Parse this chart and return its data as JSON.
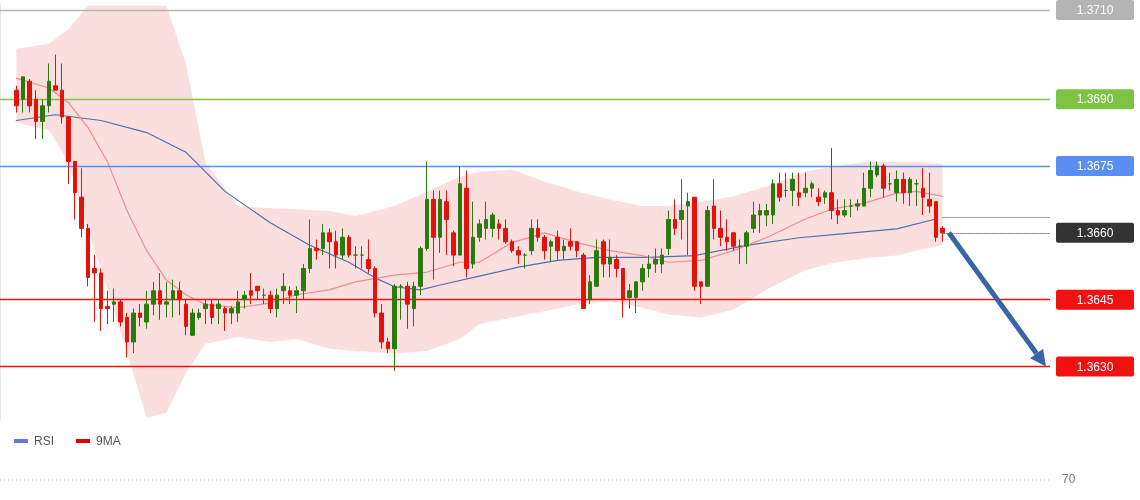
{
  "chart_data": [
    {
      "type": "candlestick",
      "ylim": [
        1.3618,
        1.37112
      ],
      "tick_labels": "y",
      "grid": false,
      "categories": [
        null,
        null,
        null,
        null,
        null,
        null,
        null,
        null,
        null,
        null,
        null,
        null,
        null,
        null,
        null,
        null,
        null,
        null,
        null,
        null,
        null,
        null,
        null,
        null,
        null,
        null,
        null,
        null,
        null,
        null,
        null,
        null,
        null,
        null,
        null,
        null,
        null,
        null,
        null,
        null,
        null,
        null,
        null,
        null,
        null,
        null,
        null,
        null,
        null,
        null,
        null,
        null,
        null,
        null,
        null,
        null,
        null,
        null,
        null,
        null,
        null,
        null,
        null,
        null,
        null,
        null,
        null,
        null,
        null,
        null,
        null,
        null,
        null,
        null,
        null,
        null,
        null,
        null,
        null,
        null,
        null,
        null,
        null,
        null,
        null,
        null,
        null,
        null,
        null,
        null,
        null,
        null,
        null,
        null,
        null,
        null,
        null,
        null,
        null,
        null,
        null,
        null,
        null,
        null,
        null,
        null,
        null,
        null,
        null,
        null,
        null,
        null,
        null,
        null,
        null,
        null,
        null,
        null,
        null,
        null,
        null,
        null,
        null,
        null,
        null,
        null,
        null,
        null,
        null,
        null,
        null,
        null,
        null,
        null,
        null,
        null,
        null,
        null,
        null,
        null,
        null,
        null,
        null,
        null,
        null,
        null,
        null,
        null,
        null,
        null,
        null,
        null,
        null,
        null,
        null,
        null,
        null,
        null,
        null,
        null,
        null
      ],
      "yticks": [
        {
          "value": 1.371,
          "label": "1.3710"
        },
        {
          "value": 1.369,
          "label": "1.3690"
        },
        {
          "value": 1.3675,
          "label": "1.3675"
        },
        {
          "value": 1.366,
          "label": "1.3660"
        },
        {
          "value": 1.3645,
          "label": "1.3645"
        },
        {
          "value": 1.363,
          "label": "1.3630"
        }
      ],
      "ref_lines": [
        {
          "axis": "y",
          "value": 1.371,
          "color": "#b4b4b4"
        },
        {
          "axis": "y",
          "value": 1.369,
          "color": "#7dc243"
        },
        {
          "axis": "y",
          "value": 1.3675,
          "color": "#5a8ef2"
        },
        {
          "axis": "y",
          "value": 1.36635,
          "color": "#444444",
          "line_style": "dotted"
        },
        {
          "axis": "y",
          "value": 1.366,
          "color": "#333333",
          "line_style": "dotted"
        },
        {
          "axis": "y",
          "value": 1.3645,
          "color": "#f21010"
        },
        {
          "axis": "y",
          "value": 1.363,
          "color": "#f21010"
        }
      ],
      "series": [
        {
          "type": "line",
          "color": "#4f6fb0",
          "values": [
            null,
            null,
            1.36852,
            null,
            null,
            null,
            null,
            null,
            1.36865,
            null,
            null,
            null,
            null,
            null,
            null,
            1.36852,
            null,
            null,
            null,
            null,
            null,
            null,
            1.36825,
            null,
            null,
            null,
            null,
            null,
            1.36781,
            null,
            null,
            null,
            null,
            null,
            1.36693,
            null,
            null,
            null,
            null,
            null,
            null,
            1.36622,
            null,
            null,
            null,
            null,
            null,
            1.36572,
            null,
            null,
            null,
            null,
            null,
            1.36534,
            null,
            null,
            null,
            1.36499,
            null,
            null,
            1.36479,
            null,
            null,
            null,
            1.36472,
            null,
            null,
            1.36483,
            null,
            null,
            null,
            null,
            null,
            1.36503,
            null,
            null,
            null,
            null,
            null,
            1.36523,
            null,
            null,
            null,
            null,
            null,
            1.36538,
            null,
            null,
            null,
            null,
            null,
            1.36545,
            null,
            null,
            null,
            null,
            null,
            null,
            null,
            1.36545,
            null,
            null,
            null,
            null,
            null,
            null,
            1.36549,
            null,
            null,
            null,
            null,
            null,
            null,
            null,
            1.36572,
            null,
            null,
            null,
            null,
            null,
            null,
            null,
            1.36589,
            null,
            null,
            null,
            null,
            null,
            null,
            1.36598,
            null,
            null,
            null,
            null,
            null,
            null,
            null,
            1.36609,
            null,
            null,
            null,
            null,
            null,
            1.36631,
            null,
            null,
            null,
            null,
            null,
            null,
            null,
            null,
            null,
            null,
            null,
            null,
            null,
            null,
            null,
            null,
            null
          ]
        },
        {
          "type": "line",
          "color": "#f08c8c",
          "values": [
            null,
            null,
            1.36947,
            null,
            null,
            null,
            null,
            1.36925,
            null,
            null,
            1.36892,
            null,
            null,
            1.36836,
            null,
            null,
            1.36759,
            null,
            null,
            1.36649,
            null,
            null,
            1.3656,
            null,
            null,
            1.36494,
            null,
            null,
            1.36461,
            null,
            null,
            1.36439,
            null,
            null,
            null,
            null,
            1.36432,
            null,
            null,
            null,
            null,
            1.36443,
            null,
            null,
            null,
            1.36461,
            null,
            null,
            null,
            null,
            1.36472,
            null,
            null,
            null,
            1.3649,
            null,
            null,
            null,
            null,
            null,
            1.36505,
            null,
            null,
            null,
            null,
            1.36512,
            null,
            null,
            null,
            null,
            1.36534,
            null,
            null,
            1.36534,
            null,
            null,
            null,
            null,
            1.36578,
            null,
            null,
            null,
            null,
            1.366,
            null,
            null,
            null,
            null,
            1.36578,
            null,
            null,
            null,
            null,
            1.3656,
            null,
            null,
            null,
            null,
            1.36549,
            null,
            null,
            null,
            1.36534,
            null,
            null,
            null,
            null,
            1.36538,
            null,
            null,
            null,
            null,
            1.3656,
            null,
            null,
            null,
            null,
            1.36589,
            null,
            null,
            null,
            null,
            null,
            1.36631,
            null,
            null,
            null,
            1.36653,
            null,
            null,
            null,
            null,
            1.36666,
            null,
            null,
            null,
            null,
            1.36689,
            null,
            null,
            1.36693,
            null,
            null,
            null,
            1.36682,
            null,
            null,
            null,
            null,
            null,
            null,
            null,
            null,
            null,
            null,
            null,
            null,
            null,
            null,
            null,
            null
          ],
          "upper": [
            null,
            null,
            1.37013,
            null,
            null,
            null,
            null,
            1.37024,
            null,
            null,
            1.37057,
            null,
            null,
            1.3711,
            null,
            null,
            1.3711,
            null,
            null,
            1.3711,
            null,
            null,
            1.3711,
            null,
            null,
            1.3711,
            null,
            null,
            1.3698,
            null,
            null,
            1.36759,
            null,
            null,
            null,
            null,
            1.3666,
            null,
            null,
            null,
            null,
            1.36655,
            null,
            null,
            null,
            1.36653,
            null,
            null,
            null,
            null,
            1.36649,
            null,
            null,
            null,
            1.36638,
            null,
            null,
            null,
            null,
            null,
            1.3666,
            null,
            null,
            null,
            null,
            1.36693,
            null,
            null,
            null,
            null,
            1.36726,
            null,
            null,
            1.36737,
            null,
            null,
            null,
            null,
            1.36742,
            null,
            null,
            null,
            null,
            1.36715,
            null,
            null,
            null,
            null,
            1.36693,
            null,
            null,
            null,
            null,
            1.36675,
            null,
            null,
            null,
            null,
            1.3666,
            null,
            null,
            null,
            1.3666,
            null,
            null,
            null,
            null,
            1.3667,
            null,
            null,
            null,
            null,
            1.36682,
            null,
            null,
            null,
            null,
            1.36704,
            null,
            null,
            null,
            null,
            null,
            1.36737,
            null,
            null,
            null,
            1.36748,
            null,
            null,
            null,
            null,
            1.36759,
            null,
            null,
            null,
            null,
            1.36759,
            null,
            null,
            1.36759,
            null,
            null,
            null,
            1.36755,
            null,
            null,
            null,
            null,
            null,
            null,
            null,
            null,
            null,
            null,
            null,
            null,
            null,
            null,
            null,
            null
          ],
          "lower": [
            null,
            null,
            1.36847,
            null,
            null,
            null,
            null,
            1.3683,
            null,
            null,
            1.36759,
            null,
            null,
            1.36605,
            null,
            null,
            1.36472,
            null,
            null,
            1.36329,
            null,
            null,
            1.36185,
            null,
            null,
            1.36196,
            null,
            null,
            1.36285,
            null,
            null,
            1.36351,
            null,
            null,
            null,
            null,
            1.36366,
            null,
            null,
            null,
            null,
            1.36355,
            null,
            null,
            null,
            1.36362,
            null,
            null,
            null,
            null,
            1.3634,
            null,
            null,
            null,
            1.36335,
            null,
            null,
            null,
            null,
            null,
            1.36329,
            null,
            null,
            null,
            null,
            1.36335,
            null,
            null,
            null,
            null,
            1.36362,
            null,
            null,
            1.36395,
            null,
            null,
            null,
            null,
            1.3641,
            null,
            null,
            null,
            null,
            1.36424,
            null,
            null,
            null,
            null,
            1.36439,
            null,
            null,
            null,
            null,
            1.36446,
            null,
            null,
            null,
            null,
            1.36432,
            null,
            null,
            null,
            1.36417,
            null,
            null,
            null,
            null,
            1.3641,
            null,
            null,
            null,
            null,
            1.36428,
            null,
            null,
            null,
            null,
            1.36472,
            null,
            null,
            null,
            null,
            null,
            1.36516,
            null,
            null,
            null,
            1.36532,
            null,
            null,
            null,
            null,
            1.36543,
            null,
            null,
            null,
            null,
            1.36549,
            null,
            null,
            1.3656,
            null,
            null,
            null,
            1.36572,
            null,
            null,
            null,
            null,
            null,
            null,
            null,
            null,
            null,
            null,
            null,
            null,
            null,
            null,
            null,
            null
          ]
        },
        {
          "type": "candlestick",
          "ohlc": [
            null,
            null,
            [
              1.3692,
              1.3693,
              1.3687,
              1.36885
            ],
            [
              1.369,
              1.3695,
              1.3687,
              1.3695
            ],
            [
              1.3694,
              1.36945,
              1.3687,
              1.36885
            ],
            [
              1.369,
              1.3692,
              1.3681,
              1.3685
            ],
            [
              1.3685,
              1.369,
              1.3681,
              1.36885
            ],
            [
              1.36885,
              1.3698,
              1.3687,
              1.3694
            ],
            [
              1.3693,
              1.37,
              1.3692,
              1.3692
            ],
            [
              1.3692,
              1.3698,
              1.36845,
              1.3686
            ],
            [
              1.3686,
              1.3686,
              1.3671,
              1.3676
            ],
            [
              1.3676,
              1.3676,
              1.3663,
              1.3669
            ],
            [
              1.3668,
              1.36745,
              1.3659,
              1.3661
            ],
            [
              1.3661,
              1.3662,
              1.3648,
              1.365
            ],
            [
              1.3652,
              1.3655,
              1.364,
              1.3651
            ],
            [
              1.3651,
              1.3652,
              1.3638,
              1.3643
            ],
            [
              1.36435,
              1.3647,
              1.36395,
              1.3643
            ],
            [
              1.3644,
              1.36475,
              1.364,
              1.36445
            ],
            [
              1.36445,
              1.3645,
              1.3639,
              1.364
            ],
            [
              1.3641,
              1.3642,
              1.3632,
              1.36355
            ],
            [
              1.36355,
              1.3643,
              1.3633,
              1.3642
            ],
            [
              1.3642,
              1.3644,
              1.3639,
              1.3641
            ],
            [
              1.364,
              1.3647,
              1.36385,
              1.3644
            ],
            [
              1.3644,
              1.3649,
              1.36415,
              1.3647
            ],
            [
              1.3647,
              1.3651,
              1.36405,
              1.3644
            ],
            [
              1.3644,
              1.3649,
              1.3641,
              1.36445
            ],
            [
              1.3645,
              1.36495,
              1.3641,
              1.3647
            ],
            [
              1.3647,
              1.3649,
              1.36415,
              1.3645
            ],
            [
              1.3644,
              1.3645,
              1.3637,
              1.3639
            ],
            [
              1.3637,
              1.3643,
              1.3637,
              1.3642
            ],
            [
              1.3641,
              1.3643,
              1.36405,
              1.3642
            ],
            [
              1.3643,
              1.3645,
              1.36395,
              1.3644
            ],
            [
              1.3644,
              1.3645,
              1.36395,
              1.3641
            ],
            [
              1.3643,
              1.3645,
              1.36395,
              1.3644
            ],
            [
              1.3643,
              1.36435,
              1.3638,
              1.3642
            ],
            [
              1.3642,
              1.36435,
              1.36395,
              1.3643
            ],
            [
              1.3642,
              1.3647,
              1.364,
              1.36445
            ],
            [
              1.3645,
              1.3647,
              1.3643,
              1.3646
            ],
            [
              1.3647,
              1.3651,
              1.3644,
              1.3646
            ],
            [
              1.3648,
              1.3648,
              1.3645,
              1.3647
            ],
            [
              1.3646,
              1.36475,
              1.3644,
              1.3646
            ],
            [
              1.3646,
              1.3647,
              1.3642,
              1.3643
            ],
            [
              1.3643,
              1.36475,
              1.3641,
              1.3646
            ],
            [
              1.3647,
              1.3651,
              1.3644,
              1.3648
            ],
            [
              1.3647,
              1.3648,
              1.3644,
              1.3646
            ],
            [
              1.3646,
              1.3648,
              1.3642,
              1.3647
            ],
            [
              1.3647,
              1.3653,
              1.3645,
              1.3652
            ],
            [
              1.3652,
              1.3663,
              1.3651,
              1.36565
            ],
            [
              1.36565,
              1.36585,
              1.3654,
              1.3656
            ],
            [
              1.36565,
              1.3662,
              1.3655,
              1.366
            ],
            [
              1.366,
              1.3661,
              1.3652,
              1.3658
            ],
            [
              1.3658,
              1.36605,
              1.3652,
              1.3655
            ],
            [
              1.3655,
              1.3661,
              1.3654,
              1.3659
            ],
            [
              1.3659,
              1.36595,
              1.36545,
              1.3655
            ],
            [
              1.3655,
              1.3657,
              1.3652,
              1.3655
            ],
            [
              1.3655,
              1.3657,
              1.3652,
              1.3655
            ],
            [
              1.3654,
              1.36585,
              1.3651,
              1.3652
            ],
            [
              1.3652,
              1.36525,
              1.3641,
              1.3642
            ],
            [
              1.3642,
              1.3644,
              1.3634,
              1.36355
            ],
            [
              1.36355,
              1.36365,
              1.3633,
              1.3634
            ],
            [
              1.3634,
              1.36485,
              1.3629,
              1.3648
            ],
            [
              1.3648,
              1.36485,
              1.36405,
              1.3648
            ],
            [
              1.3648,
              1.3649,
              1.36385,
              1.3644
            ],
            [
              1.3643,
              1.3649,
              1.3639,
              1.3648
            ],
            [
              1.3648,
              1.3657,
              1.3646,
              1.36565
            ],
            [
              1.36565,
              1.3676,
              1.3656,
              1.36675
            ],
            [
              1.36675,
              1.36695,
              1.36495,
              1.3659
            ],
            [
              1.3659,
              1.36695,
              1.36555,
              1.36675
            ],
            [
              1.3667,
              1.36695,
              1.3655,
              1.3663
            ],
            [
              1.366,
              1.36605,
              1.36525,
              1.3655
            ],
            [
              1.3655,
              1.3675,
              1.3655,
              1.3671
            ],
            [
              1.367,
              1.3674,
              1.365,
              1.3652
            ],
            [
              1.3653,
              1.3667,
              1.3652,
              1.3659
            ],
            [
              1.3659,
              1.3663,
              1.3658,
              1.3662
            ],
            [
              1.3661,
              1.3667,
              1.36585,
              1.3663
            ],
            [
              1.3661,
              1.36645,
              1.3659,
              1.3664
            ],
            [
              1.3662,
              1.3663,
              1.36585,
              1.3661
            ],
            [
              1.3661,
              1.3663,
              1.36575,
              1.3658
            ],
            [
              1.3658,
              1.36585,
              1.36555,
              1.3656
            ],
            [
              1.3656,
              1.3657,
              1.3653,
              1.3655
            ],
            [
              1.3655,
              1.36555,
              1.3652,
              1.3655
            ],
            [
              1.3656,
              1.3663,
              1.3655,
              1.3661
            ],
            [
              1.3661,
              1.3663,
              1.3658,
              1.3659
            ],
            [
              1.3659,
              1.36595,
              1.3654,
              1.3656
            ],
            [
              1.3657,
              1.36585,
              1.36535,
              1.3658
            ],
            [
              1.3659,
              1.36605,
              1.3654,
              1.3656
            ],
            [
              1.3656,
              1.36585,
              1.3654,
              1.3657
            ],
            [
              1.3658,
              1.3661,
              1.3656,
              1.3657
            ],
            [
              1.3658,
              1.3658,
              1.36545,
              1.3656
            ],
            [
              1.3655,
              1.36555,
              1.3643,
              1.3643
            ],
            [
              1.3645,
              1.36505,
              1.3644,
              1.3649
            ],
            [
              1.3648,
              1.36585,
              1.3648,
              1.3656
            ],
            [
              1.3658,
              1.36585,
              1.365,
              1.3653
            ],
            [
              1.3653,
              1.36585,
              1.365,
              1.36545
            ],
            [
              1.3654,
              1.3655,
              1.365,
              1.3652
            ],
            [
              1.3652,
              1.3652,
              1.3641,
              1.3645
            ],
            [
              1.36455,
              1.36485,
              1.3643,
              1.3647
            ],
            [
              1.36455,
              1.3649,
              1.3642,
              1.3649
            ],
            [
              1.3649,
              1.3653,
              1.3647,
              1.3652
            ],
            [
              1.3652,
              1.3655,
              1.365,
              1.3653
            ],
            [
              1.3653,
              1.36565,
              1.3651,
              1.3654
            ],
            [
              1.3653,
              1.36565,
              1.3651,
              1.3655
            ],
            [
              1.36565,
              1.3665,
              1.3655,
              1.3663
            ],
            [
              1.3663,
              1.36675,
              1.36595,
              1.3661
            ],
            [
              1.3663,
              1.3672,
              1.36585,
              1.3665
            ],
            [
              1.3666,
              1.3669,
              1.3655,
              1.3667
            ],
            [
              1.3668,
              1.3668,
              1.3647,
              1.3648
            ],
            [
              1.3649,
              1.3649,
              1.3644,
              1.3648
            ],
            [
              1.3648,
              1.3666,
              1.3648,
              1.3665
            ],
            [
              1.3666,
              1.3672,
              1.36585,
              1.3661
            ],
            [
              1.3661,
              1.3665,
              1.3657,
              1.3659
            ],
            [
              1.3659,
              1.3663,
              1.3656,
              1.3658
            ],
            [
              1.366,
              1.366,
              1.3656,
              1.3657
            ],
            [
              1.3657,
              1.36585,
              1.3653,
              1.3657
            ],
            [
              1.3657,
              1.36605,
              1.3653,
              1.366
            ],
            [
              1.3661,
              1.3667,
              1.366,
              1.3664
            ],
            [
              1.3664,
              1.36665,
              1.366,
              1.3665
            ],
            [
              1.3664,
              1.36665,
              1.36615,
              1.3665
            ],
            [
              1.3664,
              1.3672,
              1.3662,
              1.3671
            ],
            [
              1.3671,
              1.36735,
              1.3667,
              1.3668
            ],
            [
              1.36695,
              1.36735,
              1.3668,
              1.36695
            ],
            [
              1.36695,
              1.36735,
              1.3666,
              1.3672
            ],
            [
              1.3669,
              1.36735,
              1.3666,
              1.3668
            ],
            [
              1.3669,
              1.36735,
              1.3668,
              1.367
            ],
            [
              1.367,
              1.36715,
              1.3668,
              1.3671
            ],
            [
              1.3668,
              1.367,
              1.3666,
              1.3667
            ],
            [
              1.3668,
              1.36695,
              1.36665,
              1.3669
            ],
            [
              1.3669,
              1.3679,
              1.3663,
              1.3665
            ],
            [
              1.3665,
              1.36675,
              1.3662,
              1.3664
            ],
            [
              1.3664,
              1.36675,
              1.36635,
              1.3665
            ],
            [
              1.3666,
              1.36675,
              1.36635,
              1.3666
            ],
            [
              1.3666,
              1.36675,
              1.3665,
              1.36665
            ],
            [
              1.3666,
              1.36735,
              1.3666,
              1.367
            ],
            [
              1.367,
              1.3676,
              1.3668,
              1.3674
            ],
            [
              1.3673,
              1.3676,
              1.36725,
              1.3675
            ],
            [
              1.3675,
              1.36755,
              1.3668,
              1.367
            ],
            [
              1.3671,
              1.36735,
              1.36695,
              1.3671
            ],
            [
              1.3669,
              1.3674,
              1.3667,
              1.3672
            ],
            [
              1.3672,
              1.36735,
              1.36665,
              1.3669
            ],
            [
              1.3669,
              1.36725,
              1.3666,
              1.3672
            ],
            [
              1.3671,
              1.3672,
              1.3666,
              1.3671
            ],
            [
              1.367,
              1.36745,
              1.3664,
              1.3668
            ],
            [
              1.36675,
              1.36735,
              1.36645,
              1.3666
            ],
            [
              1.3667,
              1.3667,
              1.3658,
              1.3659
            ],
            [
              1.3661,
              1.36615,
              1.3658,
              1.366
            ],
            null,
            null,
            null,
            null,
            null,
            null,
            null,
            null,
            null,
            null,
            null,
            null,
            null,
            null,
            null,
            null
          ],
          "colors": [
            null,
            null,
            "#e3120b",
            "#2a7a10",
            "#e3120b",
            "#e3120b",
            "#2a7a10",
            "#2a7a10",
            "#e3120b",
            "#e3120b",
            "#e3120b",
            "#e3120b",
            "#e3120b",
            "#e3120b",
            "#e3120b",
            "#e3120b",
            "#e3120b",
            "#2a7a10",
            "#e3120b",
            "#e3120b",
            "#2a7a10",
            "#e3120b",
            "#2a7a10",
            "#2a7a10",
            "#e3120b",
            "#2a7a10",
            "#2a7a10",
            "#e3120b",
            "#e3120b",
            "#2a7a10",
            "#2a7a10",
            "#2a7a10",
            "#e3120b",
            "#2a7a10",
            "#e3120b",
            "#2a7a10",
            "#2a7a10",
            "#2a7a10",
            "#e3120b",
            "#e3120b",
            "#2a7a10",
            "#e3120b",
            "#2a7a10",
            "#2a7a10",
            "#e3120b",
            "#2a7a10",
            "#2a7a10",
            "#2a7a10",
            "#e3120b",
            "#2a7a10",
            "#e3120b",
            "#e3120b",
            "#2a7a10",
            "#e3120b",
            "#2a7a10",
            "#2a7a10",
            "#e3120b",
            "#e3120b",
            "#e3120b",
            "#e3120b",
            "#2a7a10",
            "#2a7a10",
            "#e3120b",
            "#2a7a10",
            "#2a7a10",
            "#2a7a10",
            "#e3120b",
            "#2a7a10",
            "#e3120b",
            "#e3120b",
            "#2a7a10",
            "#e3120b",
            "#2a7a10",
            "#2a7a10",
            "#2a7a10",
            "#2a7a10",
            "#e3120b",
            "#e3120b",
            "#e3120b",
            "#e3120b",
            "#2a7a10",
            "#2a7a10",
            "#e3120b",
            "#e3120b",
            "#2a7a10",
            "#e3120b",
            "#2a7a10",
            "#e3120b",
            "#e3120b",
            "#e3120b",
            "#2a7a10",
            "#2a7a10",
            "#e3120b",
            "#2a7a10",
            "#e3120b",
            "#e3120b",
            "#2a7a10",
            "#2a7a10",
            "#2a7a10",
            "#2a7a10",
            "#2a7a10",
            "#2a7a10",
            "#2a7a10",
            "#e3120b",
            "#2a7a10",
            "#2a7a10",
            "#e3120b",
            "#e3120b",
            "#2a7a10",
            "#e3120b",
            "#e3120b",
            "#e3120b",
            "#e3120b",
            "#2a7a10",
            "#2a7a10",
            "#2a7a10",
            "#2a7a10",
            "#2a7a10",
            "#2a7a10",
            "#e3120b",
            "#2a7a10",
            "#2a7a10",
            "#e3120b",
            "#2a7a10",
            "#2a7a10",
            "#e3120b",
            "#2a7a10",
            "#e3120b",
            "#e3120b",
            "#2a7a10",
            "#2a7a10",
            "#2a7a10",
            "#2a7a10",
            "#2a7a10",
            "#2a7a10",
            "#e3120b",
            "#2a7a10",
            "#2a7a10",
            "#e3120b",
            "#2a7a10",
            "#2a7a10",
            "#e3120b",
            "#e3120b",
            "#e3120b",
            "#e3120b",
            null,
            null,
            null,
            null,
            null,
            null,
            null,
            null,
            null,
            null,
            null,
            null,
            null,
            null,
            null,
            null
          ]
        }
      ]
    },
    {
      "type": "other",
      "legend": "top left",
      "annotations": [
        "70"
      ],
      "series": [
        {
          "name": "RSI",
          "color": "#5b7fde"
        },
        {
          "name": "9MA",
          "color": "#e00000"
        }
      ]
    }
  ]
}
